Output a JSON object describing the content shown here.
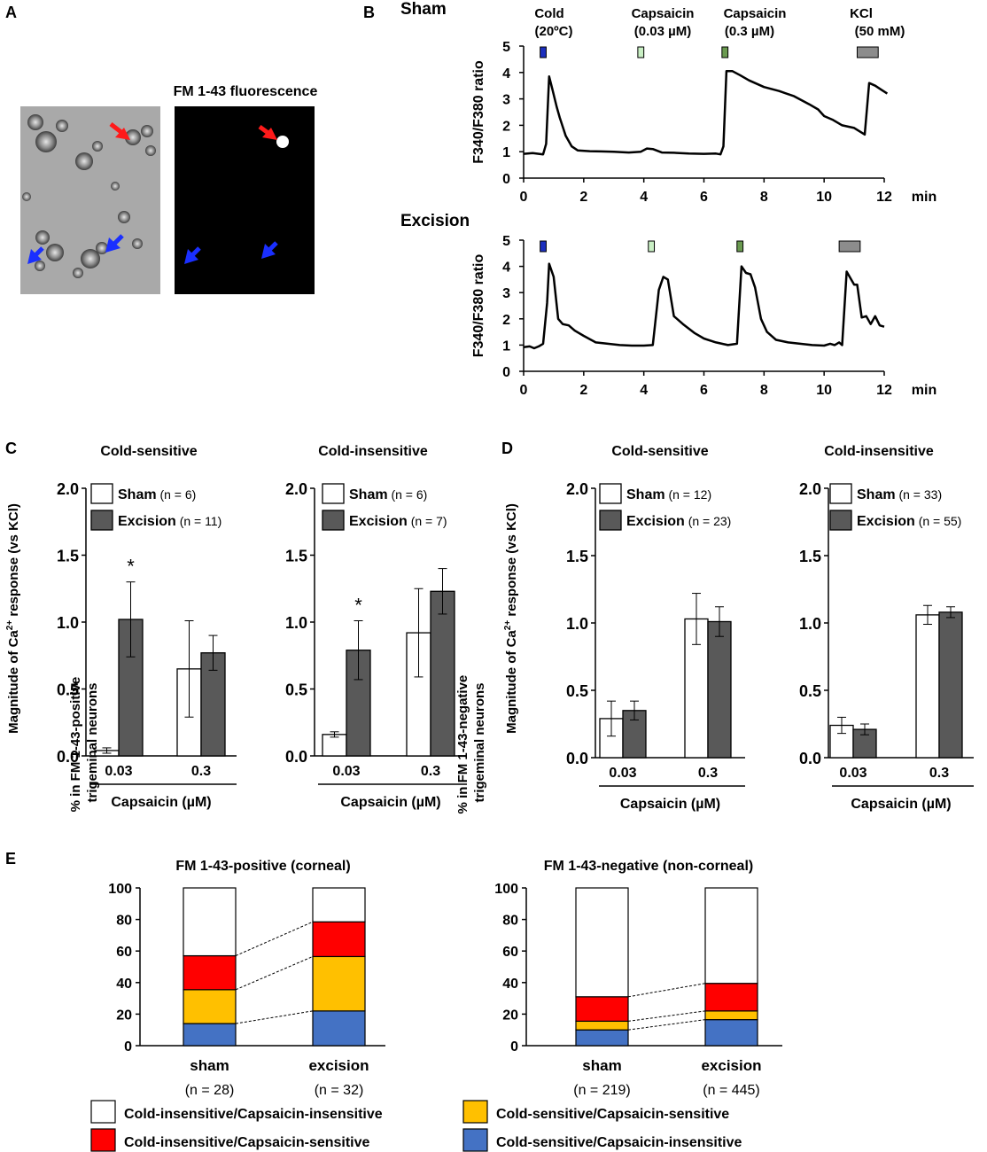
{
  "colors": {
    "cold": "#1c2fbf",
    "caps_low": "#c9efc4",
    "caps_high": "#6a9a50",
    "kcl": "#8c8c8c",
    "sham_bar": "#ffffff",
    "exc_bar": "#595959",
    "ci_cs": "#ff0000",
    "cs_cs": "#ffc000",
    "cs_ci": "#4472c4",
    "ci_ci": "#ffffff",
    "red_arrow": "#ff1a1a",
    "blue_arrow": "#1a2fff"
  },
  "panel_labels": {
    "a": "A",
    "b": "B",
    "c": "C",
    "d": "D",
    "e": "E"
  },
  "panel_a": {
    "fluor_title": "FM 1-43 fluorescence"
  },
  "panel_b": {
    "stimuli": [
      {
        "line1": "Cold",
        "line2": "(20ºC)"
      },
      {
        "line1": "Capsaicin",
        "line2": "(0.03 µM)"
      },
      {
        "line1": "Capsaicin",
        "line2": "(0.3 µM)"
      },
      {
        "line1": "KCl",
        "line2": "(50 mM)"
      }
    ],
    "x_unit": "min",
    "ylabel": "F340/F380 ratio"
  },
  "panel_c": {
    "xlabel": "Capsaicin (µM)",
    "ylabel_pre": "Magnitude of Ca",
    "ylabel_sup": "2+",
    "ylabel_post": " response (vs KCl)"
  },
  "panel_d": {
    "xlabel": "Capsaicin (µM)",
    "ylabel_pre": "Magnitude of Ca",
    "ylabel_sup": "2+",
    "ylabel_post": " response (vs KCl)"
  },
  "panel_e": {
    "ylabel_left": [
      "% in FM 1-43-positive",
      "trigeminal neurons"
    ],
    "ylabel_right": [
      "% in FM 1-43-negative",
      "trigeminal neurons"
    ]
  },
  "legend_e": [
    {
      "label": "Cold-insensitive/Capsaicin-insensitive",
      "color_key": "ci_ci"
    },
    {
      "label": "Cold-sensitive/Capsaicin-sensitive",
      "color_key": "cs_cs"
    },
    {
      "label": "Cold-insensitive/Capsaicin-sensitive",
      "color_key": "ci_cs"
    },
    {
      "label": "Cold-sensitive/Capsaicin-insensitive",
      "color_key": "cs_ci"
    }
  ],
  "chart_data": [
    {
      "type": "line",
      "panel": "B",
      "title": "Sham",
      "xlabel": "min",
      "ylabel": "F340/F380 ratio",
      "xlim": [
        0,
        12
      ],
      "ylim": [
        0,
        5
      ],
      "xticks": [
        0,
        2,
        4,
        6,
        8,
        10,
        12
      ],
      "yticks": [
        0,
        1,
        2,
        3,
        4,
        5
      ],
      "stimulus_windows": [
        {
          "label": "Cold (20ºC)",
          "start": 0.55,
          "end": 0.75,
          "color_key": "cold"
        },
        {
          "label": "Capsaicin (0.03 µM)",
          "start": 3.8,
          "end": 4.0,
          "color_key": "caps_low"
        },
        {
          "label": "Capsaicin (0.3 µM)",
          "start": 6.6,
          "end": 6.8,
          "color_key": "caps_high"
        },
        {
          "label": "KCl (50 mM)",
          "start": 11.1,
          "end": 11.8,
          "color_key": "kcl"
        }
      ],
      "x": [
        0,
        0.3,
        0.65,
        0.75,
        0.85,
        0.95,
        1.1,
        1.2,
        1.4,
        1.6,
        1.8,
        2.2,
        2.6,
        3.0,
        3.5,
        3.9,
        4.1,
        4.3,
        4.6,
        5.0,
        5.5,
        6.0,
        6.4,
        6.55,
        6.65,
        6.75,
        6.95,
        7.2,
        7.5,
        8.0,
        8.5,
        9.0,
        9.5,
        9.8,
        10.0,
        10.3,
        10.6,
        11.0,
        11.35,
        11.5,
        11.7,
        11.9,
        12.1
      ],
      "y": [
        0.92,
        0.95,
        0.9,
        1.3,
        3.85,
        3.4,
        2.7,
        2.3,
        1.6,
        1.2,
        1.05,
        1.02,
        1.01,
        1.0,
        0.97,
        1.0,
        1.12,
        1.1,
        0.97,
        0.96,
        0.93,
        0.92,
        0.93,
        0.9,
        1.2,
        4.05,
        4.05,
        3.9,
        3.7,
        3.45,
        3.3,
        3.1,
        2.8,
        2.6,
        2.35,
        2.2,
        2.0,
        1.9,
        1.65,
        3.6,
        3.5,
        3.35,
        3.2
      ],
      "series_name": "Sham"
    },
    {
      "type": "line",
      "panel": "B",
      "title": "Excision",
      "xlabel": "min",
      "ylabel": "F340/F380 ratio",
      "xlim": [
        0,
        12
      ],
      "ylim": [
        0,
        5
      ],
      "xticks": [
        0,
        2,
        4,
        6,
        8,
        10,
        12
      ],
      "yticks": [
        0,
        1,
        2,
        3,
        4,
        5
      ],
      "stimulus_windows": [
        {
          "label": "Cold (20ºC)",
          "start": 0.55,
          "end": 0.75,
          "color_key": "cold"
        },
        {
          "label": "Capsaicin (0.03 µM)",
          "start": 4.15,
          "end": 4.35,
          "color_key": "caps_low"
        },
        {
          "label": "Capsaicin (0.3 µM)",
          "start": 7.1,
          "end": 7.3,
          "color_key": "caps_high"
        },
        {
          "label": "KCl (50 mM)",
          "start": 10.5,
          "end": 11.2,
          "color_key": "kcl"
        }
      ],
      "x": [
        0,
        0.2,
        0.35,
        0.5,
        0.65,
        0.78,
        0.85,
        1.0,
        1.15,
        1.3,
        1.5,
        1.7,
        2.0,
        2.4,
        2.8,
        3.2,
        3.6,
        4.0,
        4.3,
        4.5,
        4.65,
        4.8,
        5.0,
        5.3,
        5.7,
        6.0,
        6.4,
        6.8,
        7.1,
        7.25,
        7.4,
        7.55,
        7.7,
        7.9,
        8.1,
        8.4,
        8.8,
        9.2,
        9.6,
        10.0,
        10.2,
        10.35,
        10.5,
        10.6,
        10.75,
        10.9,
        11.0,
        11.1,
        11.25,
        11.4,
        11.55,
        11.7,
        11.85,
        12.0
      ],
      "y": [
        0.92,
        0.95,
        0.88,
        0.95,
        1.05,
        2.6,
        4.1,
        3.6,
        2.0,
        1.8,
        1.75,
        1.55,
        1.35,
        1.1,
        1.05,
        1.0,
        0.98,
        0.98,
        1.0,
        3.1,
        3.6,
        3.5,
        2.1,
        1.8,
        1.45,
        1.25,
        1.1,
        1.0,
        1.05,
        4.0,
        3.75,
        3.7,
        3.2,
        2.0,
        1.5,
        1.2,
        1.1,
        1.05,
        1.0,
        0.98,
        1.05,
        1.0,
        1.1,
        1.0,
        3.8,
        3.5,
        3.3,
        3.3,
        2.05,
        2.1,
        1.8,
        2.1,
        1.75,
        1.7
      ],
      "series_name": "Excision"
    },
    {
      "type": "bar",
      "panel": "C",
      "title": "Cold-sensitive",
      "categories": [
        "0.03",
        "0.3"
      ],
      "xlabel": "Capsaicin (µM)",
      "ylabel": "Magnitude of Ca2+ response (vs KCl)",
      "ylim": [
        0,
        2.0
      ],
      "yticks": [
        "0.0",
        "0.5",
        "1.0",
        "1.5",
        "2.0"
      ],
      "series": [
        {
          "name": "Sham",
          "n": "(n = 6)",
          "values": [
            0.04,
            0.65
          ],
          "errors": [
            0.02,
            0.36
          ]
        },
        {
          "name": "Excision",
          "n": "(n = 11)",
          "values": [
            1.02,
            0.77
          ],
          "errors": [
            0.28,
            0.13
          ]
        }
      ],
      "annotations": [
        {
          "text": "*",
          "category_index": 0,
          "series": "Excision"
        }
      ]
    },
    {
      "type": "bar",
      "panel": "C",
      "title": "Cold-insensitive",
      "categories": [
        "0.03",
        "0.3"
      ],
      "xlabel": "Capsaicin (µM)",
      "ylabel": "",
      "ylim": [
        0,
        2.0
      ],
      "yticks": [
        "0.0",
        "0.5",
        "1.0",
        "1.5",
        "2.0"
      ],
      "series": [
        {
          "name": "Sham",
          "n": "(n = 6)",
          "values": [
            0.16,
            0.92
          ],
          "errors": [
            0.02,
            0.33
          ]
        },
        {
          "name": "Excision",
          "n": "(n = 7)",
          "values": [
            0.79,
            1.23
          ],
          "errors": [
            0.22,
            0.17
          ]
        }
      ],
      "annotations": [
        {
          "text": "*",
          "category_index": 0,
          "series": "Excision"
        }
      ]
    },
    {
      "type": "bar",
      "panel": "D",
      "title": "Cold-sensitive",
      "categories": [
        "0.03",
        "0.3"
      ],
      "xlabel": "Capsaicin (µM)",
      "ylabel": "Magnitude of Ca2+ response (vs KCl)",
      "ylim": [
        0,
        2.0
      ],
      "yticks": [
        "0.0",
        "0.5",
        "1.0",
        "1.5",
        "2.0"
      ],
      "series": [
        {
          "name": "Sham",
          "n": "(n = 12)",
          "values": [
            0.29,
            1.03
          ],
          "errors": [
            0.13,
            0.19
          ]
        },
        {
          "name": "Excision",
          "n": "(n = 23)",
          "values": [
            0.35,
            1.01
          ],
          "errors": [
            0.07,
            0.11
          ]
        }
      ],
      "annotations": []
    },
    {
      "type": "bar",
      "panel": "D",
      "title": "Cold-insensitive",
      "categories": [
        "0.03",
        "0.3"
      ],
      "xlabel": "Capsaicin (µM)",
      "ylabel": "",
      "ylim": [
        0,
        2.0
      ],
      "yticks": [
        "0.0",
        "0.5",
        "1.0",
        "1.5",
        "2.0"
      ],
      "series": [
        {
          "name": "Sham",
          "n": "(n = 33)",
          "values": [
            0.24,
            1.06
          ],
          "errors": [
            0.06,
            0.07
          ]
        },
        {
          "name": "Excision",
          "n": "(n = 55)",
          "values": [
            0.21,
            1.08
          ],
          "errors": [
            0.04,
            0.04
          ]
        }
      ],
      "annotations": []
    },
    {
      "type": "bar",
      "stacked": true,
      "panel": "E",
      "title": "FM 1-43-positive (corneal)",
      "ylabel": "% in FM 1-43-positive trigeminal neurons",
      "ylim": [
        0,
        100
      ],
      "yticks": [
        0,
        20,
        40,
        60,
        80,
        100
      ],
      "categories": [
        "sham",
        "excision"
      ],
      "ns": [
        "(n = 28)",
        "(n = 32)"
      ],
      "series": [
        {
          "name": "Cold-sensitive/Capsaicin-insensitive",
          "color_key": "cs_ci",
          "values": [
            14,
            22
          ]
        },
        {
          "name": "Cold-sensitive/Capsaicin-sensitive",
          "color_key": "cs_cs",
          "values": [
            21.5,
            34.5
          ]
        },
        {
          "name": "Cold-insensitive/Capsaicin-sensitive",
          "color_key": "ci_cs",
          "values": [
            21.5,
            22
          ]
        },
        {
          "name": "Cold-insensitive/Capsaicin-insensitive",
          "color_key": "ci_ci",
          "values": [
            43,
            21.5
          ]
        }
      ]
    },
    {
      "type": "bar",
      "stacked": true,
      "panel": "E",
      "title": "FM 1-43-negative (non-corneal)",
      "ylabel": "% in FM 1-43-negative trigeminal neurons",
      "ylim": [
        0,
        100
      ],
      "yticks": [
        0,
        20,
        40,
        60,
        80,
        100
      ],
      "categories": [
        "sham",
        "excision"
      ],
      "ns": [
        "(n = 219)",
        "(n = 445)"
      ],
      "series": [
        {
          "name": "Cold-sensitive/Capsaicin-insensitive",
          "color_key": "cs_ci",
          "values": [
            10,
            16.5
          ]
        },
        {
          "name": "Cold-sensitive/Capsaicin-sensitive",
          "color_key": "cs_cs",
          "values": [
            5.5,
            5.5
          ]
        },
        {
          "name": "Cold-insensitive/Capsaicin-sensitive",
          "color_key": "ci_cs",
          "values": [
            15.5,
            17.5
          ]
        },
        {
          "name": "Cold-insensitive/Capsaicin-insensitive",
          "color_key": "ci_ci",
          "values": [
            69,
            60.5
          ]
        }
      ]
    }
  ]
}
